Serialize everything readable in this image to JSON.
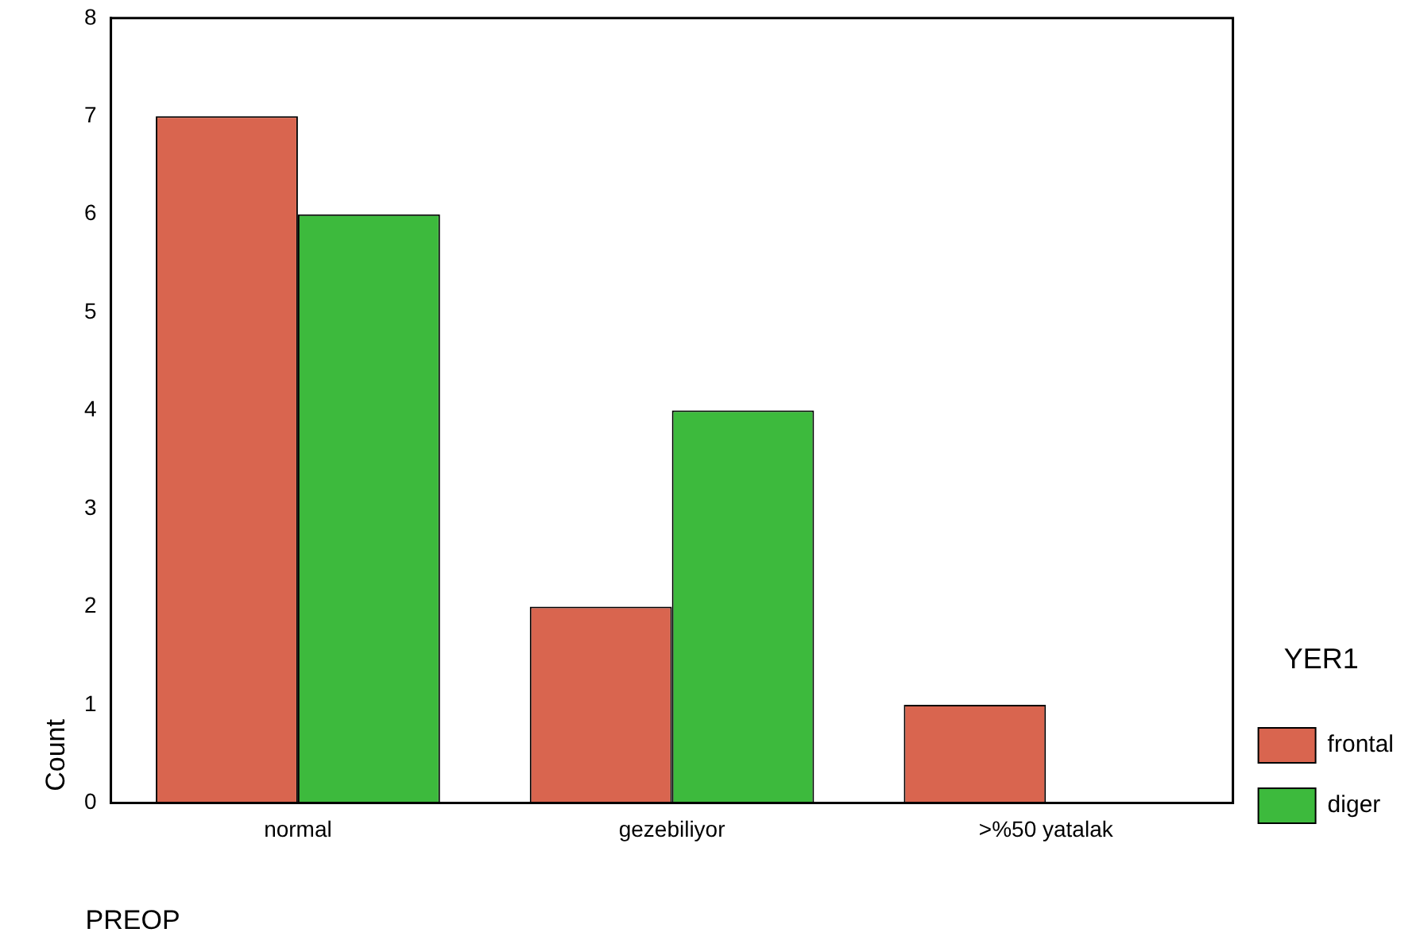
{
  "chart_data": {
    "type": "bar",
    "xlabel": "PREOP",
    "ylabel": "Count",
    "legend_title": "YER1",
    "categories": [
      "normal",
      "gezebiliyor",
      ">%50 yatalak"
    ],
    "series": [
      {
        "name": "frontal",
        "color": "#d9654f",
        "values": [
          7,
          2,
          1
        ]
      },
      {
        "name": "diger",
        "color": "#3dba3d",
        "values": [
          6,
          4,
          0
        ]
      }
    ],
    "ylim": [
      0,
      8
    ],
    "yticks": [
      0,
      1,
      2,
      3,
      4,
      5,
      6,
      7,
      8
    ],
    "grid": false,
    "legend": "right"
  }
}
